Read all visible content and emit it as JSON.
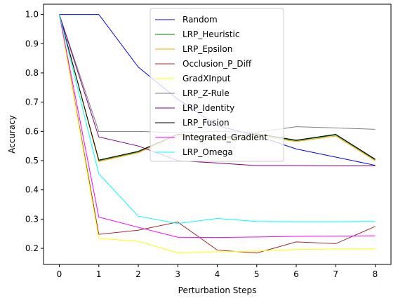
{
  "chart_data": {
    "type": "line",
    "title": "",
    "xlabel": "Perturbation Steps",
    "ylabel": "Accuracy",
    "x": [
      0,
      1,
      2,
      3,
      4,
      5,
      6,
      7,
      8
    ],
    "xticks": [
      "0",
      "1",
      "2",
      "3",
      "4",
      "5",
      "6",
      "7",
      "8"
    ],
    "yticks": [
      "0.2",
      "0.3",
      "0.4",
      "0.5",
      "0.6",
      "0.7",
      "0.8",
      "0.9",
      "1.0"
    ],
    "xlim": [
      -0.4,
      8.4
    ],
    "ylim": [
      0.145,
      1.035
    ],
    "grid": false,
    "legend_placement": "upper-center",
    "series": [
      {
        "name": "Random",
        "color": "#0000ff",
        "values": [
          1.0,
          1.0,
          0.82,
          0.71,
          0.62,
          0.585,
          0.54,
          0.512,
          0.484
        ]
      },
      {
        "name": "LRP_Heuristic",
        "color": "#008000",
        "values": [
          1.0,
          0.5,
          0.53,
          0.59,
          0.575,
          0.59,
          0.568,
          0.588,
          0.503
        ]
      },
      {
        "name": "LRP_Epsilon",
        "color": "#ffa500",
        "values": [
          1.0,
          0.497,
          0.527,
          0.585,
          0.57,
          0.585,
          0.565,
          0.584,
          0.5
        ]
      },
      {
        "name": "Occlusion_P_Diff",
        "color": "#a52a2a",
        "values": [
          1.0,
          0.248,
          0.262,
          0.29,
          0.194,
          0.184,
          0.222,
          0.216,
          0.275
        ]
      },
      {
        "name": "GradXInput",
        "color": "#ffff00",
        "values": [
          1.0,
          0.234,
          0.224,
          0.185,
          0.188,
          0.191,
          0.196,
          0.198,
          0.198
        ]
      },
      {
        "name": "LRP_Z-Rule",
        "color": "#808080",
        "values": [
          1.0,
          0.6,
          0.6,
          0.596,
          0.6,
          0.597,
          0.616,
          0.612,
          0.607
        ]
      },
      {
        "name": "LRP_Identity",
        "color": "#800080",
        "values": [
          1.0,
          0.581,
          0.55,
          0.5,
          0.492,
          0.483,
          0.483,
          0.482,
          0.482
        ]
      },
      {
        "name": "LRP_Fusion",
        "color": "#000000",
        "values": [
          1.0,
          0.502,
          0.532,
          0.59,
          0.577,
          0.592,
          0.57,
          0.59,
          0.505
        ]
      },
      {
        "name": "Integrated_Gradient",
        "color": "#ff00ff",
        "values": [
          1.0,
          0.307,
          0.272,
          0.238,
          0.237,
          0.239,
          0.241,
          0.242,
          0.243
        ]
      },
      {
        "name": "LRP_Omega",
        "color": "#00ffff",
        "values": [
          1.0,
          0.455,
          0.31,
          0.285,
          0.302,
          0.292,
          0.291,
          0.291,
          0.292
        ]
      }
    ]
  }
}
